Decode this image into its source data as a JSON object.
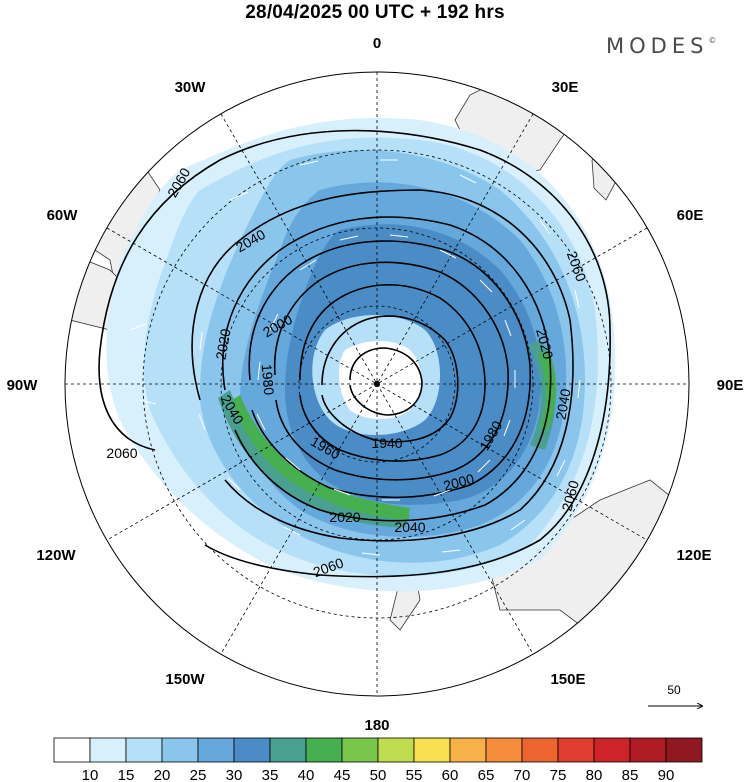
{
  "title": "28/04/2025  00 UTC  + 192 hrs",
  "brand": {
    "name": "MODES",
    "mark": "©"
  },
  "longitude_labels": [
    {
      "id": "0",
      "text": "0"
    },
    {
      "id": "30e",
      "text": "30E"
    },
    {
      "id": "60e",
      "text": "60E"
    },
    {
      "id": "90e",
      "text": "90E"
    },
    {
      "id": "120e",
      "text": "120E"
    },
    {
      "id": "150e",
      "text": "150E"
    },
    {
      "id": "180",
      "text": "180"
    },
    {
      "id": "150w",
      "text": "150W"
    },
    {
      "id": "120w",
      "text": "120W"
    },
    {
      "id": "90w",
      "text": "90W"
    },
    {
      "id": "60w",
      "text": "60W"
    },
    {
      "id": "30w",
      "text": "30W"
    }
  ],
  "contour_labels": [
    "2060",
    "2060",
    "2060",
    "2060",
    "2060",
    "2040",
    "2040",
    "2040",
    "2040",
    "2020",
    "2020",
    "2020",
    "2000",
    "2000",
    "1980",
    "1980",
    "1960",
    "1940"
  ],
  "vector_reference": {
    "value": "50"
  },
  "colorbar": {
    "colors": [
      "#ffffff",
      "#d8f0fc",
      "#b5e0f8",
      "#8ac6ec",
      "#64a8dc",
      "#4a8cc6",
      "#4aa090",
      "#46b050",
      "#78c64a",
      "#c0dc50",
      "#f8e050",
      "#f8b048",
      "#f48c3c",
      "#ec6430",
      "#e03c30",
      "#cc2428",
      "#b01c24",
      "#901820"
    ],
    "ticks": [
      "10",
      "15",
      "20",
      "25",
      "30",
      "35",
      "40",
      "45",
      "50",
      "55",
      "60",
      "65",
      "70",
      "75",
      "80",
      "85",
      "90"
    ]
  }
}
